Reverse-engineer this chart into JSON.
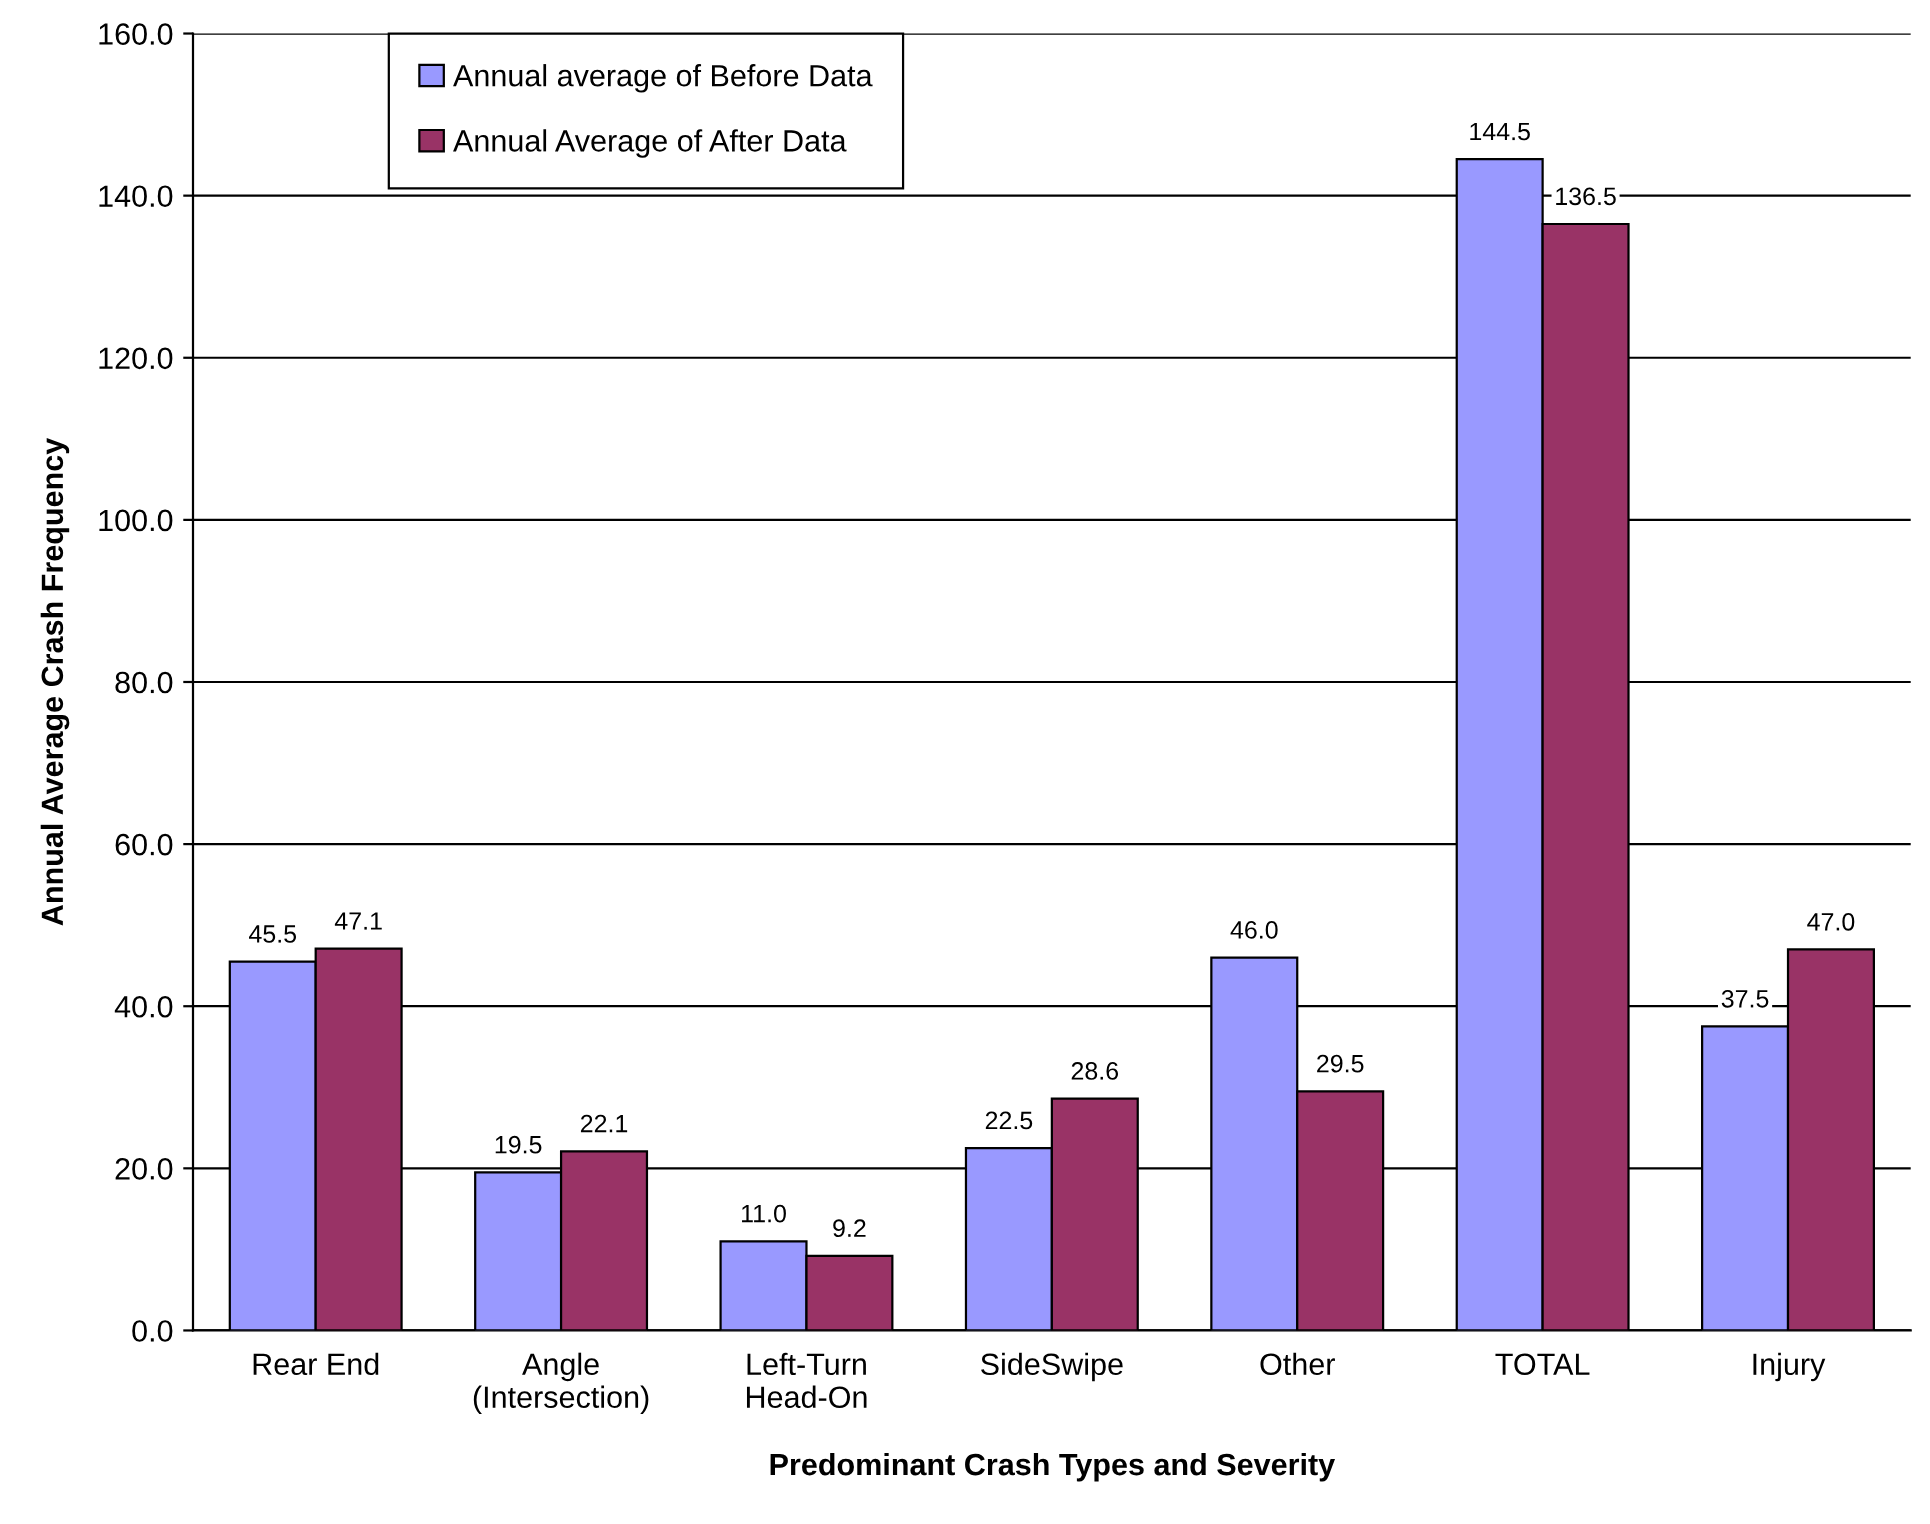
{
  "chart_data": {
    "type": "bar",
    "xlabel": "Predominant Crash Types and Severity",
    "ylabel": "Annual Average Crash Frequency",
    "categories": [
      "Rear End",
      "Angle\n(Intersection)",
      "Left-Turn\nHead-On",
      "SideSwipe",
      "Other",
      "TOTAL",
      "Injury"
    ],
    "series": [
      {
        "name": "Annual average of Before Data",
        "color": "#9999ff",
        "values": [
          45.5,
          19.5,
          11.0,
          22.5,
          46.0,
          144.5,
          37.5
        ],
        "value_labels": [
          "45.5",
          "19.5",
          "11.0",
          "22.5",
          "46.0",
          "144.5",
          "37.5"
        ]
      },
      {
        "name": "Annual Average of After Data",
        "color": "#993366",
        "values": [
          47.1,
          22.1,
          9.2,
          28.6,
          29.5,
          136.5,
          47.0
        ],
        "value_labels": [
          "47.1",
          "22.1",
          "9.2",
          "28.6",
          "29.5",
          "136.5",
          "47.0"
        ]
      }
    ],
    "ylim": [
      0,
      160
    ],
    "yticks": [
      {
        "value": 0,
        "label": "0.0"
      },
      {
        "value": 20,
        "label": "20.0"
      },
      {
        "value": 40,
        "label": "40.0"
      },
      {
        "value": 60,
        "label": "60.0"
      },
      {
        "value": 80,
        "label": "80.0"
      },
      {
        "value": 100,
        "label": "100.0"
      },
      {
        "value": 120,
        "label": "120.0"
      },
      {
        "value": 140,
        "label": "140.0"
      },
      {
        "value": 160,
        "label": "160.0"
      }
    ],
    "grid": "y",
    "legend": "top left"
  }
}
